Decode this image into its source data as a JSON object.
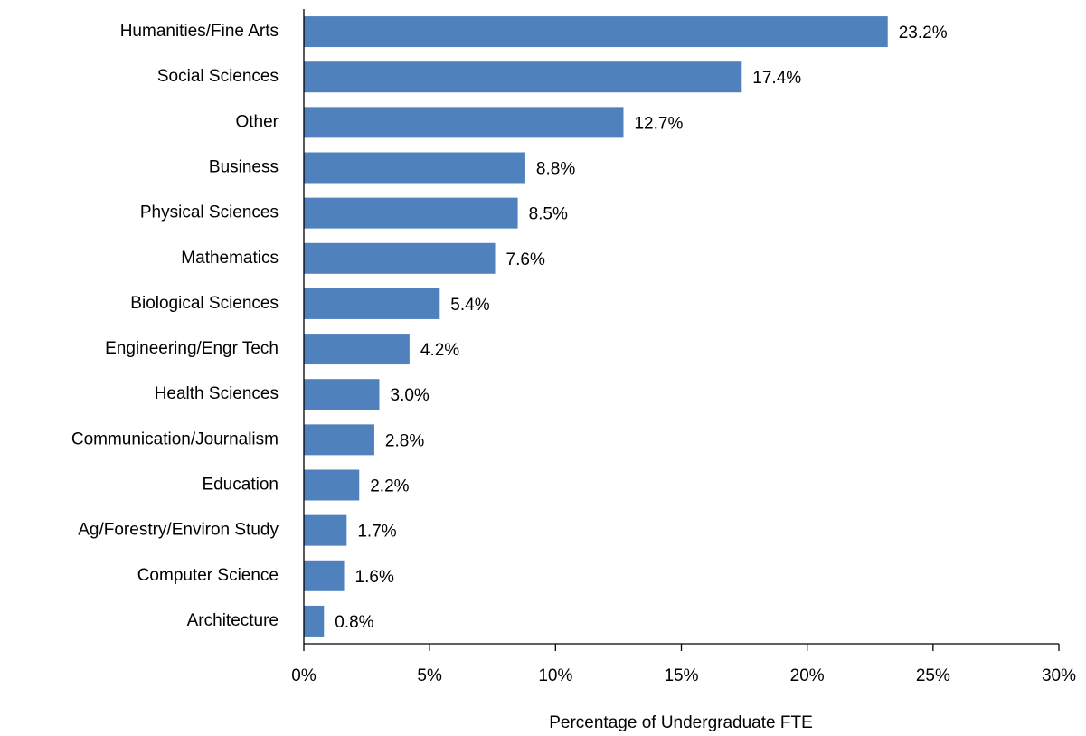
{
  "chart_data": {
    "type": "bar",
    "orientation": "horizontal",
    "categories": [
      "Humanities/Fine Arts",
      "Social Sciences",
      "Other",
      "Business",
      "Physical Sciences",
      "Mathematics",
      "Biological Sciences",
      "Engineering/Engr Tech",
      "Health Sciences",
      "Communication/Journalism",
      "Education",
      "Ag/Forestry/Environ Study",
      "Computer Science",
      "Architecture"
    ],
    "values": [
      23.2,
      17.4,
      12.7,
      8.8,
      8.5,
      7.6,
      5.4,
      4.2,
      3.0,
      2.8,
      2.2,
      1.7,
      1.6,
      0.8
    ],
    "value_labels": [
      "23.2%",
      "17.4%",
      "12.7%",
      "8.8%",
      "8.5%",
      "7.6%",
      "5.4%",
      "4.2%",
      "3.0%",
      "2.8%",
      "2.2%",
      "1.7%",
      "1.6%",
      "0.8%"
    ],
    "color": "#4f81bd",
    "xlabel": "Percentage of Undergraduate FTE",
    "xlim": [
      0,
      30
    ],
    "xticks": [
      {
        "value": 0,
        "label": "0%"
      },
      {
        "value": 5,
        "label": "5%"
      },
      {
        "value": 10,
        "label": "10%"
      },
      {
        "value": 15,
        "label": "15%"
      },
      {
        "value": 20,
        "label": "20%"
      },
      {
        "value": 25,
        "label": "25%"
      },
      {
        "value": 30,
        "label": "30%"
      }
    ],
    "grid": false
  }
}
